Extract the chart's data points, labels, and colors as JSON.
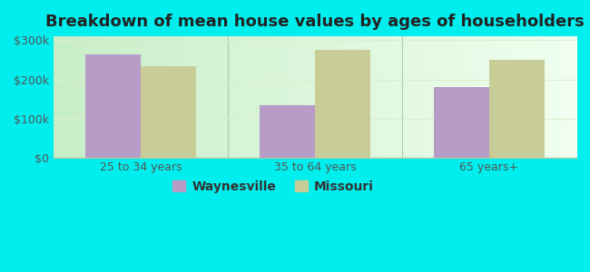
{
  "title": "Breakdown of mean house values by ages of householders",
  "categories": [
    "25 to 34 years",
    "35 to 64 years",
    "65 years+"
  ],
  "waynesville": [
    265000,
    135000,
    180000
  ],
  "missouri": [
    235000,
    275000,
    250000
  ],
  "waynesville_color": "#b89cc8",
  "missouri_color": "#c8cc96",
  "background_color": "#00eeee",
  "plot_bg_left": "#c8eec8",
  "plot_bg_right": "#f0fff0",
  "ylim": [
    0,
    310000
  ],
  "yticks": [
    0,
    100000,
    200000,
    300000
  ],
  "ytick_labels": [
    "$0",
    "$100k",
    "$200k",
    "$300k"
  ],
  "legend_waynesville": "Waynesville",
  "legend_missouri": "Missouri",
  "bar_width": 0.32,
  "title_fontsize": 13,
  "tick_fontsize": 9,
  "legend_fontsize": 10,
  "grid_color": "#ddeecc",
  "divider_color": "#aaccaa"
}
